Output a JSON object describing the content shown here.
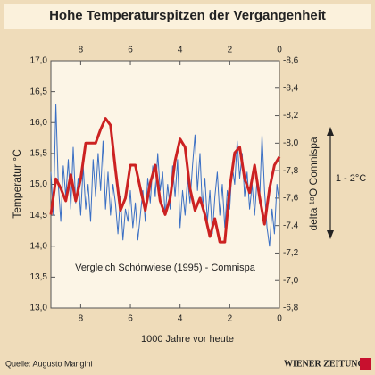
{
  "chart_data": {
    "type": "line",
    "title": "Hohe Temperaturspitzen der Vergangenheit",
    "xlabel": "1000 Jahre vor heute",
    "ylabel": "Temperatur °C",
    "y2label": "delta ¹⁸O Comnispa",
    "annotations": [
      "Vergleich Schönwiese (1995) - Comnispa",
      "1 - 2°C"
    ],
    "source": "Quelle: Augusto Mangini",
    "publisher": "WIENER ZEITUNG",
    "xlim": [
      9.2,
      0
    ],
    "xticks": [
      8,
      6,
      4,
      2,
      0
    ],
    "ylim": [
      13,
      17
    ],
    "yticks": [
      {
        "value": 13,
        "label": "13,0"
      },
      {
        "value": 13.5,
        "label": "13,5"
      },
      {
        "value": 14,
        "label": "14,0"
      },
      {
        "value": 14.5,
        "label": "14,5"
      },
      {
        "value": 15,
        "label": "15,0"
      },
      {
        "value": 15.5,
        "label": "15,5"
      },
      {
        "value": 16,
        "label": "16,0"
      },
      {
        "value": 16.5,
        "label": "16,5"
      },
      {
        "value": 17,
        "label": "17,0"
      }
    ],
    "y2lim": [
      -6.8,
      -8.6
    ],
    "y2ticks": [
      {
        "value": -8.6,
        "label": "-8,6"
      },
      {
        "value": -8.4,
        "label": "-8,4"
      },
      {
        "value": -8.2,
        "label": "-8,2"
      },
      {
        "value": -8.0,
        "label": "-8,0"
      },
      {
        "value": -7.8,
        "label": "-7,8"
      },
      {
        "value": -7.6,
        "label": "-7,6"
      },
      {
        "value": -7.4,
        "label": "-7,4"
      },
      {
        "value": -7.2,
        "label": "-7,2"
      },
      {
        "value": -7.0,
        "label": "-7,0"
      },
      {
        "value": -6.8,
        "label": "-6,8"
      }
    ],
    "series": [
      {
        "color": "#3a6fc4",
        "axis": "y",
        "x": [
          9.2,
          9.1,
          9.0,
          8.9,
          8.8,
          8.7,
          8.6,
          8.5,
          8.4,
          8.3,
          8.2,
          8.1,
          8.0,
          7.9,
          7.8,
          7.7,
          7.6,
          7.5,
          7.4,
          7.3,
          7.2,
          7.1,
          7.0,
          6.9,
          6.8,
          6.7,
          6.6,
          6.5,
          6.4,
          6.3,
          6.2,
          6.1,
          6.0,
          5.9,
          5.8,
          5.7,
          5.6,
          5.5,
          5.4,
          5.3,
          5.2,
          5.1,
          5.0,
          4.9,
          4.8,
          4.7,
          4.6,
          4.5,
          4.4,
          4.3,
          4.2,
          4.1,
          4.0,
          3.9,
          3.8,
          3.7,
          3.6,
          3.5,
          3.4,
          3.3,
          3.2,
          3.1,
          3.0,
          2.9,
          2.8,
          2.7,
          2.6,
          2.5,
          2.4,
          2.3,
          2.2,
          2.1,
          2.0,
          1.9,
          1.8,
          1.7,
          1.6,
          1.5,
          1.4,
          1.3,
          1.2,
          1.1,
          1.0,
          0.9,
          0.8,
          0.7,
          0.6,
          0.5,
          0.4,
          0.3,
          0.2,
          0.1,
          0.0
        ],
        "values": [
          15.2,
          14.5,
          16.3,
          15.0,
          14.4,
          15.3,
          14.8,
          15.4,
          14.6,
          15.6,
          14.7,
          15.1,
          14.5,
          15.3,
          14.6,
          15.0,
          14.4,
          15.4,
          14.8,
          15.5,
          14.9,
          15.7,
          14.6,
          15.2,
          14.5,
          15.0,
          14.7,
          14.2,
          14.8,
          14.1,
          14.6,
          14.4,
          14.9,
          14.3,
          14.7,
          14.1,
          14.5,
          14.9,
          14.4,
          15.1,
          14.7,
          15.3,
          14.8,
          15.5,
          14.9,
          15.2,
          14.5,
          15.0,
          14.6,
          15.3,
          14.8,
          15.4,
          14.3,
          14.9,
          14.5,
          15.1,
          14.7,
          15.3,
          15.8,
          14.9,
          15.5,
          14.6,
          15.1,
          14.4,
          14.9,
          14.2,
          14.8,
          15.2,
          14.5,
          15.0,
          14.3,
          14.9,
          14.6,
          15.3,
          15.0,
          15.7,
          15.1,
          15.5,
          14.8,
          15.2,
          14.6,
          15.0,
          14.5,
          15.1,
          14.7,
          15.8,
          14.9,
          14.3,
          14.0,
          14.6,
          14.2,
          15.0,
          14.7
        ]
      },
      {
        "color": "#cc2222",
        "axis": "y2",
        "x": [
          9.2,
          9.0,
          8.8,
          8.6,
          8.4,
          8.2,
          8.0,
          7.8,
          7.6,
          7.4,
          7.2,
          7.0,
          6.8,
          6.6,
          6.4,
          6.2,
          6.0,
          5.8,
          5.6,
          5.4,
          5.2,
          5.0,
          4.8,
          4.6,
          4.4,
          4.2,
          4.0,
          3.8,
          3.6,
          3.4,
          3.2,
          3.0,
          2.8,
          2.6,
          2.4,
          2.2,
          2.0,
          1.8,
          1.6,
          1.4,
          1.2,
          1.0,
          0.8,
          0.6,
          0.4,
          0.2,
          0.0
        ],
        "values": [
          -7.48,
          -7.74,
          -7.67,
          -7.58,
          -7.77,
          -7.58,
          -7.74,
          -8.0,
          -8.0,
          -8.0,
          -8.1,
          -8.18,
          -8.13,
          -7.81,
          -7.51,
          -7.6,
          -7.84,
          -7.84,
          -7.67,
          -7.51,
          -7.71,
          -7.84,
          -7.58,
          -7.48,
          -7.6,
          -7.87,
          -8.03,
          -7.97,
          -7.67,
          -7.51,
          -7.6,
          -7.48,
          -7.32,
          -7.45,
          -7.28,
          -7.28,
          -7.67,
          -7.93,
          -7.97,
          -7.74,
          -7.64,
          -7.84,
          -7.61,
          -7.41,
          -7.67,
          -7.84,
          -7.9
        ]
      }
    ]
  }
}
